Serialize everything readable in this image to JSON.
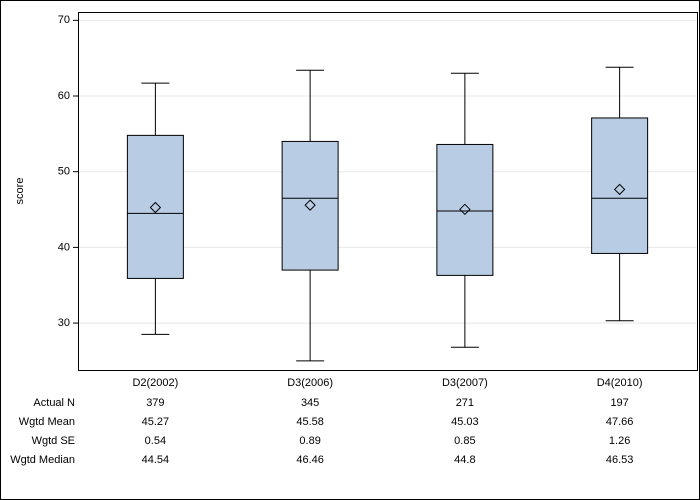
{
  "chart_data": {
    "type": "box",
    "y_label": "score",
    "categories": [
      "D2(2002)",
      "D3(2006)",
      "D3(2007)",
      "D4(2010)"
    ],
    "boxes": [
      {
        "whisker_low": 28.5,
        "q1": 35.9,
        "median": 44.5,
        "q3": 54.8,
        "whisker_high": 61.7,
        "mean": 45.27
      },
      {
        "whisker_low": 25.0,
        "q1": 37.0,
        "median": 46.5,
        "q3": 54.0,
        "whisker_high": 63.4,
        "mean": 45.58
      },
      {
        "whisker_low": 26.8,
        "q1": 36.3,
        "median": 44.8,
        "q3": 53.6,
        "whisker_high": 63.0,
        "mean": 45.03
      },
      {
        "whisker_low": 30.3,
        "q1": 39.2,
        "median": 46.5,
        "q3": 57.1,
        "whisker_high": 63.8,
        "mean": 47.66
      }
    ],
    "color": "#b8cce4",
    "ylim": [
      23.8,
      71.1
    ],
    "yticks": [
      30,
      40,
      50,
      60,
      70
    ],
    "grid": true
  },
  "table": {
    "rows": [
      {
        "label": "Actual N",
        "values": [
          379,
          345,
          271,
          197
        ]
      },
      {
        "label": "Wgtd Mean",
        "values": [
          45.27,
          45.58,
          45.03,
          47.66
        ]
      },
      {
        "label": "Wgtd SE",
        "values": [
          0.54,
          0.89,
          0.85,
          1.26
        ]
      },
      {
        "label": "Wgtd Median",
        "values": [
          44.54,
          46.46,
          44.8,
          46.53
        ]
      }
    ]
  }
}
